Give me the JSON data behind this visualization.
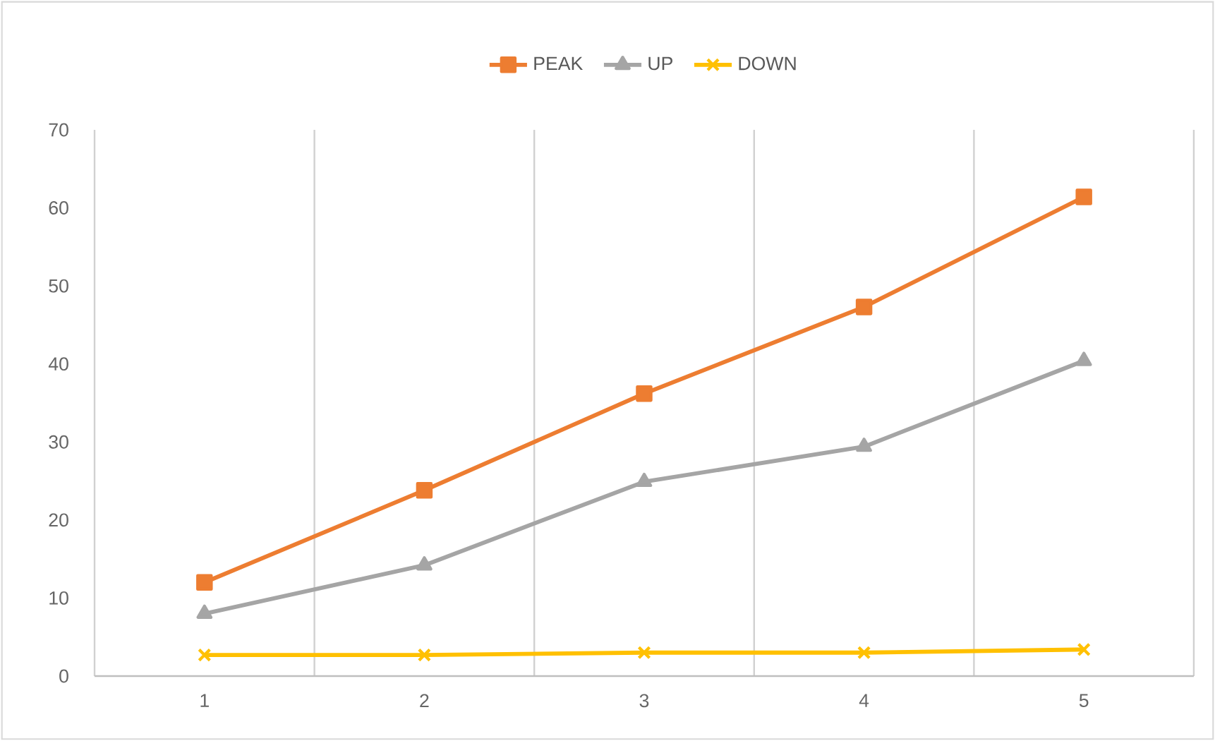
{
  "chart_data": {
    "type": "line",
    "categories": [
      "1",
      "2",
      "3",
      "4",
      "5"
    ],
    "series": [
      {
        "name": "PEAK",
        "color": "#ed7d31",
        "marker": "square",
        "values": [
          12,
          23.8,
          36.2,
          47.3,
          61.4
        ]
      },
      {
        "name": "UP",
        "color": "#a5a5a5",
        "marker": "triangle",
        "values": [
          8,
          14.2,
          24.9,
          29.4,
          40.4
        ]
      },
      {
        "name": "DOWN",
        "color": "#ffc000",
        "marker": "cross",
        "values": [
          2.7,
          2.7,
          3.0,
          3.0,
          3.4
        ]
      }
    ],
    "ylim": [
      0,
      70
    ],
    "yticks": [
      0,
      10,
      20,
      30,
      40,
      50,
      60,
      70
    ],
    "grid": "x",
    "legend": "top",
    "line_style": "solid"
  }
}
